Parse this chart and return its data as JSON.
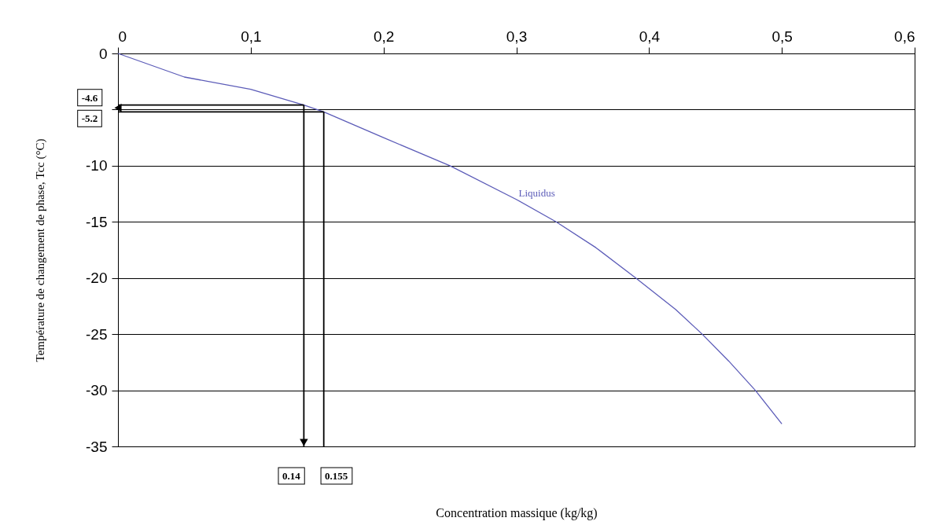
{
  "chart_data": {
    "type": "line",
    "xlabel": "Concentration massique (kg/kg)",
    "ylabel": "Température de changement de phase, Tcc  (°C)",
    "xlim": [
      0,
      0.6
    ],
    "xticks": [
      0,
      {
        "value": 0.1,
        "label": "0,1"
      },
      {
        "value": 0.2,
        "label": "0,2"
      },
      {
        "value": 0.3,
        "label": "0,3"
      },
      {
        "value": 0.4,
        "label": "0,4"
      },
      {
        "value": 0.5,
        "label": "0,5"
      },
      {
        "value": 0.6,
        "label": "0,6"
      }
    ],
    "ylim": [
      -35,
      0
    ],
    "yticks": [
      -35,
      -30,
      -25,
      -20,
      -15,
      -10,
      {
        "value": -5,
        "label": null
      },
      0
    ],
    "grid": "y",
    "series": [
      {
        "name": "Liquidus",
        "color": "#5c5cb8",
        "x": [
          0,
          0.05,
          0.1,
          0.14,
          0.155,
          0.2,
          0.25,
          0.3,
          0.33,
          0.36,
          0.39,
          0.42,
          0.44,
          0.46,
          0.48,
          0.5
        ],
        "values": [
          0,
          -2.1,
          -3.2,
          -4.6,
          -5.2,
          -7.5,
          -10,
          -13,
          -15,
          -17.3,
          -20,
          -22.8,
          -25,
          -27.4,
          -30,
          -33
        ]
      }
    ],
    "ref_lines": [
      {
        "axis": "y",
        "value": -4.6,
        "label": "-4.6"
      },
      {
        "axis": "y",
        "value": -5.2,
        "label": "-5.2"
      },
      {
        "axis": "x",
        "value": 0.14,
        "label": "0.14"
      },
      {
        "axis": "x",
        "value": 0.155,
        "label": "0.155"
      }
    ]
  }
}
